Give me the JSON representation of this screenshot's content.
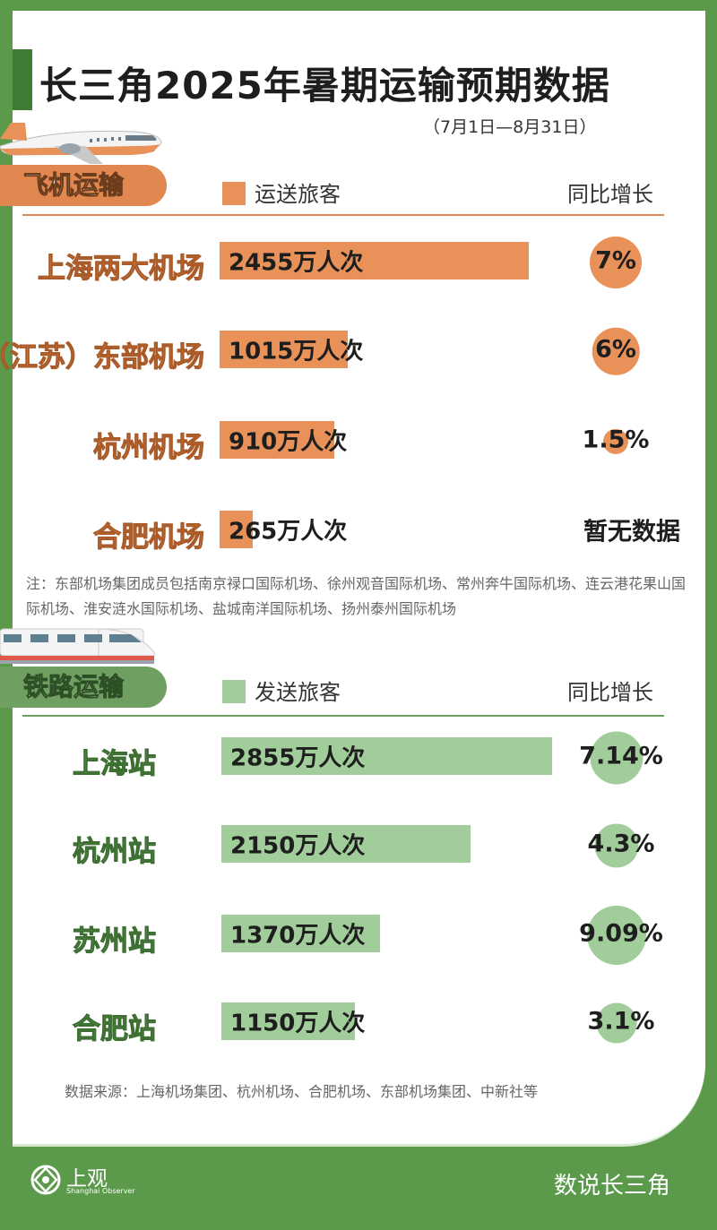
{
  "title": "长三角2025年暑期运输预期数据",
  "subtitle": "（7月1日—8月31日）",
  "colors": {
    "air": "#e8925a",
    "rail": "#a1cd9a",
    "background": "#5a9a4a"
  },
  "air": {
    "section_label": "飞机运输",
    "legend": "运送旅客",
    "yoy_header": "同比增长",
    "note": "注：东部机场集团成员包括南京禄口国际机场、徐州观音国际机场、常州奔牛国际机场、连云港花果山国际机场、淮安涟水国际机场、盐城南洋国际机场、扬州泰州国际机场"
  },
  "rail": {
    "section_label": "铁路运输",
    "legend": "发送旅客",
    "yoy_header": "同比增长"
  },
  "source": "数据来源：上海机场集团、杭州机场、合肥机场、东部机场集团、中新社等",
  "footer": {
    "logo_cn": "上观",
    "logo_en": "Shanghai Observer",
    "brand": "数说长三角"
  },
  "chart_data": [
    {
      "type": "bar",
      "categories": [
        "上海两大机场",
        "（江苏）东部机场",
        "杭州机场",
        "合肥机场"
      ],
      "values": [
        2455,
        1015,
        910,
        265
      ],
      "value_labels": [
        "2455万人次",
        "1015万人次",
        "910万人次",
        "265万人次"
      ],
      "unit": "万人次",
      "yoy": [
        7,
        6,
        1.5,
        null
      ],
      "yoy_labels": [
        "7%",
        "6%",
        "1.5%",
        "暂无数据"
      ],
      "color": "#e8925a"
    },
    {
      "type": "bar",
      "categories": [
        "上海站",
        "杭州站",
        "苏州站",
        "合肥站"
      ],
      "values": [
        2855,
        2150,
        1370,
        1150
      ],
      "value_labels": [
        "2855万人次",
        "2150万人次",
        "1370万人次",
        "1150万人次"
      ],
      "unit": "万人次",
      "yoy": [
        7.14,
        4.3,
        9.09,
        3.1
      ],
      "yoy_labels": [
        "7.14%",
        "4.3%",
        "9.09%",
        "3.1%"
      ],
      "color": "#a1cd9a"
    }
  ]
}
